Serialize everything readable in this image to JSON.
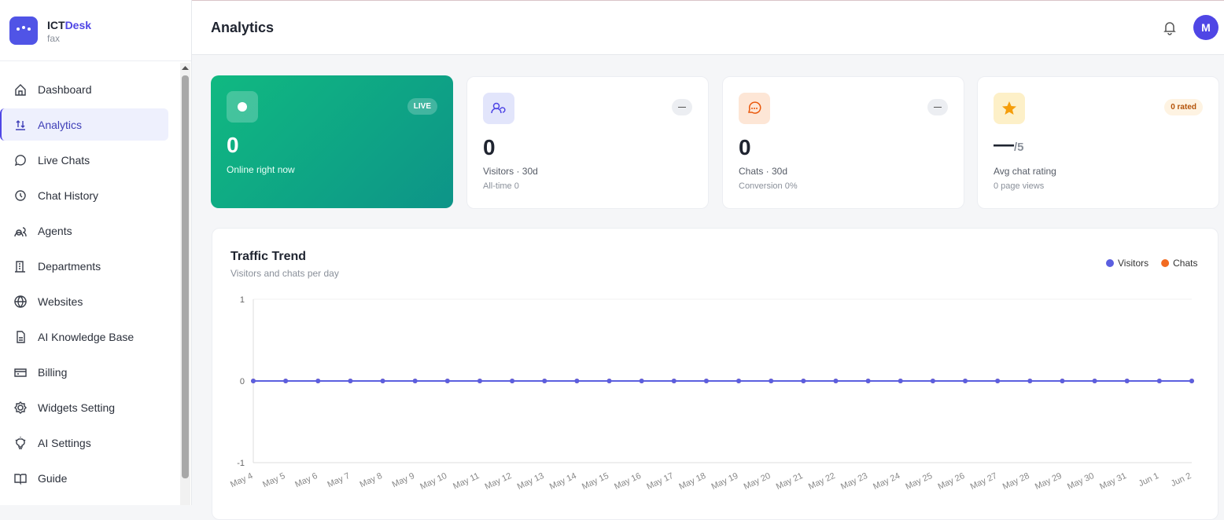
{
  "brand": {
    "name_part1": "ICT",
    "name_part2": "Desk",
    "subtitle": "fax"
  },
  "nav": [
    "Dashboard",
    "Analytics",
    "Live Chats",
    "Chat History",
    "Agents",
    "Departments",
    "Websites",
    "AI Knowledge Base",
    "Billing",
    "Widgets Setting",
    "AI Settings",
    "Guide"
  ],
  "header": {
    "title": "Analytics",
    "avatar": "M"
  },
  "stats": [
    {
      "badge": "LIVE",
      "value": "0",
      "label": "Online right now"
    },
    {
      "badge": "—",
      "value": "0",
      "label": "Visitors · 30d",
      "sub": "All-time 0"
    },
    {
      "badge": "—",
      "value": "0",
      "label": "Chats · 30d",
      "sub": "Conversion 0%"
    },
    {
      "badge": "0 rated",
      "value": "—",
      "suffix": "/5",
      "label": "Avg chat rating",
      "sub": "0 page views"
    }
  ],
  "chart_data": {
    "type": "line",
    "title": "Traffic Trend",
    "subtitle": "Visitors and chats per day",
    "categories": [
      "May 4",
      "May 5",
      "May 6",
      "May 7",
      "May 8",
      "May 9",
      "May 10",
      "May 11",
      "May 12",
      "May 13",
      "May 14",
      "May 15",
      "May 16",
      "May 17",
      "May 18",
      "May 19",
      "May 20",
      "May 21",
      "May 22",
      "May 23",
      "May 24",
      "May 25",
      "May 26",
      "May 27",
      "May 28",
      "May 29",
      "May 30",
      "May 31",
      "Jun 1",
      "Jun 2"
    ],
    "series": [
      {
        "name": "Visitors",
        "color": "#5b5fe0",
        "values": [
          0,
          0,
          0,
          0,
          0,
          0,
          0,
          0,
          0,
          0,
          0,
          0,
          0,
          0,
          0,
          0,
          0,
          0,
          0,
          0,
          0,
          0,
          0,
          0,
          0,
          0,
          0,
          0,
          0,
          0
        ]
      },
      {
        "name": "Chats",
        "color": "#f26b21",
        "values": [
          0,
          0,
          0,
          0,
          0,
          0,
          0,
          0,
          0,
          0,
          0,
          0,
          0,
          0,
          0,
          0,
          0,
          0,
          0,
          0,
          0,
          0,
          0,
          0,
          0,
          0,
          0,
          0,
          0,
          0
        ]
      }
    ],
    "ylim": [
      -1,
      1
    ],
    "yticks": [
      -1,
      0,
      1
    ],
    "grid": true
  }
}
